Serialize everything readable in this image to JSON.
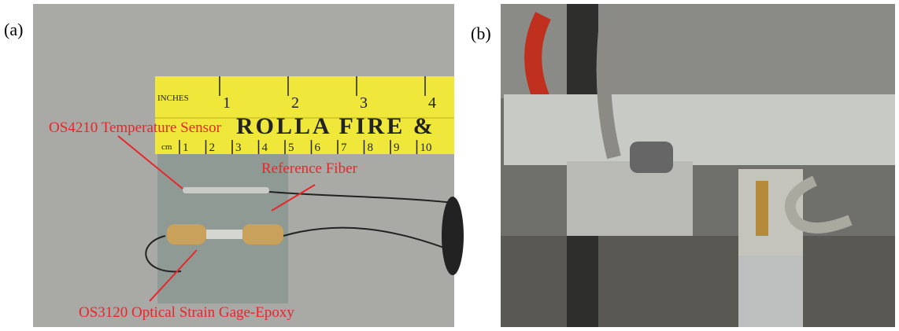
{
  "panels": [
    {
      "label": "(a)",
      "annotations": [
        "OS4210 Temperature Sensor",
        "Reference Fiber",
        "OS3120 Optical Strain Gage-Epoxy"
      ],
      "ruler": {
        "brand": "ROLLA FIRE &",
        "inch_label": "INCHES",
        "cm_label": "cm",
        "inches": [
          1,
          2,
          3,
          4
        ],
        "cm": [
          1,
          2,
          3,
          4,
          5,
          6,
          7,
          8,
          9,
          10
        ]
      }
    },
    {
      "label": "(b)"
    }
  ]
}
